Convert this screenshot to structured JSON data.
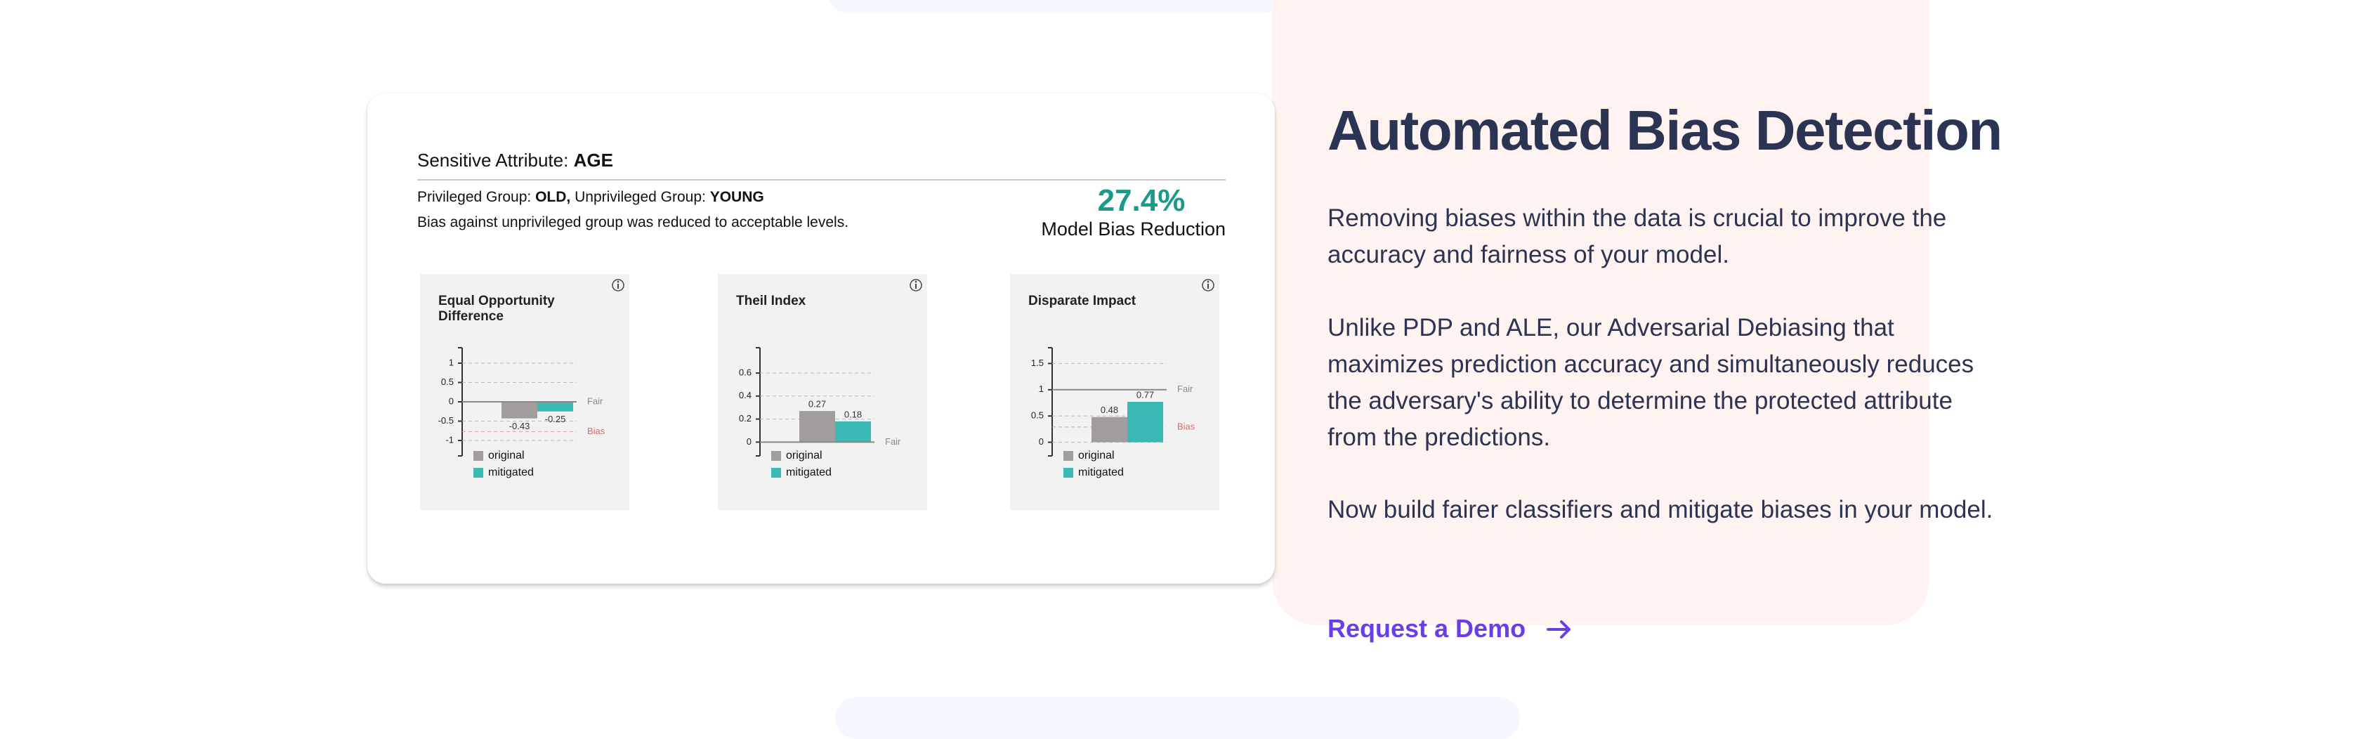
{
  "card": {
    "attribute_label": "Sensitive Attribute:",
    "attribute": "AGE",
    "privileged_label": "Privileged Group:",
    "privileged": "OLD,",
    "unprivileged_label": "Unprivileged Group:",
    "unprivileged": "YOUNG",
    "note": "Bias against unprivileged group was reduced to acceptable levels.",
    "reduction": "27.4%",
    "reduction_label": "Model Bias Reduction"
  },
  "charts": [
    {
      "type": "bar",
      "title": "Equal Opportunity Difference",
      "ylim": [
        -1.4,
        1.4
      ],
      "yticks": [
        1,
        0.5,
        0,
        -0.5,
        -1
      ],
      "grid": true,
      "series": [
        {
          "name": "original",
          "color": "#a19d9d",
          "values": [
            -0.43
          ]
        },
        {
          "name": "mitigated",
          "color": "#3bb9b4",
          "values": [
            -0.25
          ]
        }
      ],
      "fair": {
        "label": "Fair",
        "value": 0
      },
      "bias": {
        "label": "Bias",
        "value": -0.77
      }
    },
    {
      "type": "bar",
      "title": "Theil Index",
      "ylim": [
        -0.12,
        0.82
      ],
      "yticks": [
        0.6,
        0.4,
        0.2,
        0
      ],
      "grid": true,
      "series": [
        {
          "name": "original",
          "color": "#a19d9d",
          "values": [
            0.27
          ]
        },
        {
          "name": "mitigated",
          "color": "#3bb9b4",
          "values": [
            0.18
          ]
        }
      ],
      "fair": {
        "label": "Fair",
        "value": 0
      }
    },
    {
      "type": "bar",
      "title": "Disparate Impact",
      "ylim": [
        -0.26,
        1.8
      ],
      "yticks": [
        1.5,
        1,
        0.5,
        0
      ],
      "grid": true,
      "series": [
        {
          "name": "original",
          "color": "#a19d9d",
          "values": [
            0.48
          ]
        },
        {
          "name": "mitigated",
          "color": "#3bb9b4",
          "values": [
            0.77
          ]
        }
      ],
      "fair": {
        "label": "Fair",
        "value": 1
      },
      "bias": {
        "label": "Bias",
        "value": 0.29
      }
    }
  ],
  "content": {
    "heading": "Automated Bias Detection",
    "paragraphs": [
      "Removing biases within the data is crucial to improve the accuracy and fairness of your model.",
      "Unlike PDP and ALE, our Adversarial Debiasing that maximizes prediction accuracy and simultaneously reduces the adversary's ability to determine the protected attribute from the predictions.",
      "Now build fairer classifiers and mitigate biases in your model."
    ],
    "cta": "Request a Demo"
  }
}
